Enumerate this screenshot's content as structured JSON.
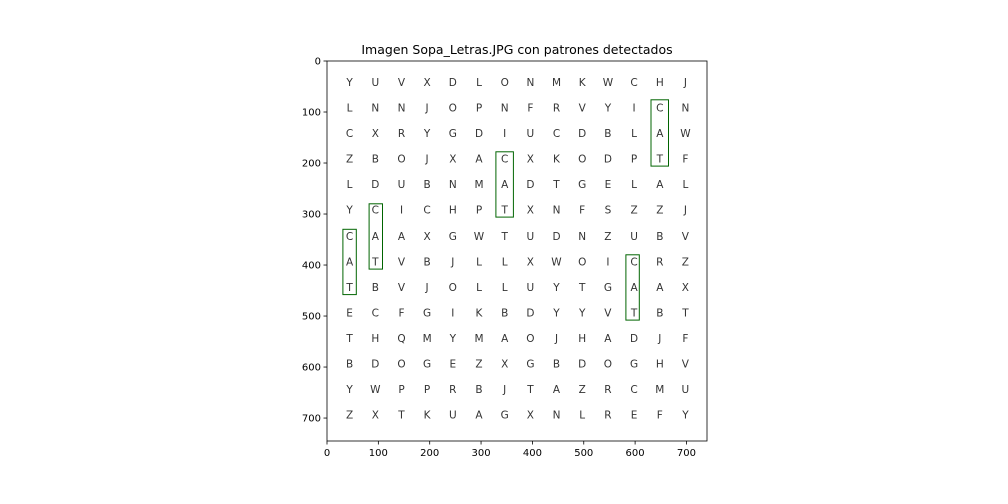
{
  "chart_data": {
    "type": "heatmap",
    "title": "Imagen Sopa_Letras.JPG con patrones detectados",
    "xlim": [
      0,
      740
    ],
    "ylim": [
      745,
      0
    ],
    "x_ticks": [
      0,
      100,
      200,
      300,
      400,
      500,
      600,
      700
    ],
    "y_ticks": [
      0,
      100,
      200,
      300,
      400,
      500,
      600,
      700
    ],
    "x_tick_labels": [
      "0",
      "100",
      "200",
      "300",
      "400",
      "500",
      "600",
      "700"
    ],
    "y_tick_labels": [
      "0",
      "100",
      "200",
      "300",
      "400",
      "500",
      "600",
      "700"
    ],
    "grid": false,
    "letters": {
      "col_x": [
        44,
        94,
        145,
        195,
        245,
        296,
        346,
        396,
        447,
        497,
        547,
        598,
        648,
        698
      ],
      "row_y": [
        42,
        92,
        142,
        192,
        242,
        292,
        343,
        393,
        443,
        493,
        543,
        593,
        643,
        693
      ],
      "rows": [
        [
          "Y",
          "U",
          "V",
          "X",
          "D",
          "L",
          "O",
          "N",
          "M",
          "K",
          "W",
          "C",
          "H",
          "J"
        ],
        [
          "L",
          "N",
          "N",
          "J",
          "O",
          "P",
          "N",
          "F",
          "R",
          "V",
          "Y",
          "I",
          "C",
          "N"
        ],
        [
          "C",
          "X",
          "R",
          "Y",
          "G",
          "D",
          "I",
          "U",
          "C",
          "D",
          "B",
          "L",
          "A",
          "W"
        ],
        [
          "Z",
          "B",
          "O",
          "J",
          "X",
          "A",
          "C",
          "X",
          "K",
          "O",
          "D",
          "P",
          "T",
          "F"
        ],
        [
          "L",
          "D",
          "U",
          "B",
          "N",
          "M",
          "A",
          "D",
          "T",
          "G",
          "E",
          "L",
          "A",
          "L"
        ],
        [
          "Y",
          "C",
          "I",
          "C",
          "H",
          "P",
          "T",
          "X",
          "N",
          "F",
          "S",
          "Z",
          "Z",
          "J"
        ],
        [
          "C",
          "A",
          "A",
          "X",
          "G",
          "W",
          "T",
          "U",
          "D",
          "N",
          "Z",
          "U",
          "B",
          "V"
        ],
        [
          "A",
          "T",
          "V",
          "B",
          "J",
          "L",
          "L",
          "X",
          "W",
          "O",
          "I",
          "C",
          "R",
          "Z"
        ],
        [
          "T",
          "B",
          "V",
          "J",
          "O",
          "L",
          "L",
          "U",
          "Y",
          "T",
          "G",
          "A",
          "A",
          "X"
        ],
        [
          "E",
          "C",
          "F",
          "G",
          "I",
          "K",
          "B",
          "D",
          "Y",
          "Y",
          "V",
          "T",
          "B",
          "T"
        ],
        [
          "T",
          "H",
          "Q",
          "M",
          "Y",
          "M",
          "A",
          "O",
          "J",
          "H",
          "A",
          "D",
          "J",
          "F"
        ],
        [
          "B",
          "D",
          "O",
          "G",
          "E",
          "Z",
          "X",
          "G",
          "B",
          "D",
          "O",
          "G",
          "H",
          "V"
        ],
        [
          "Y",
          "W",
          "P",
          "P",
          "R",
          "B",
          "J",
          "T",
          "A",
          "Z",
          "R",
          "C",
          "M",
          "U"
        ],
        [
          "Z",
          "X",
          "T",
          "K",
          "U",
          "A",
          "G",
          "X",
          "N",
          "L",
          "R",
          "E",
          "F",
          "Y"
        ]
      ]
    },
    "detections": [
      {
        "word": "CAT",
        "x0": 631,
        "y0": 76,
        "x1": 665,
        "y1": 206
      },
      {
        "word": "CAT",
        "x0": 329,
        "y0": 178,
        "x1": 363,
        "y1": 306
      },
      {
        "word": "CAT",
        "x0": 82,
        "y0": 280,
        "x1": 108,
        "y1": 408
      },
      {
        "word": "CAT",
        "x0": 31,
        "y0": 330,
        "x1": 57,
        "y1": 458
      },
      {
        "word": "CAT",
        "x0": 582,
        "y0": 380,
        "x1": 608,
        "y1": 508
      }
    ],
    "detection_color": "#006400",
    "letter_color": "#333333"
  }
}
